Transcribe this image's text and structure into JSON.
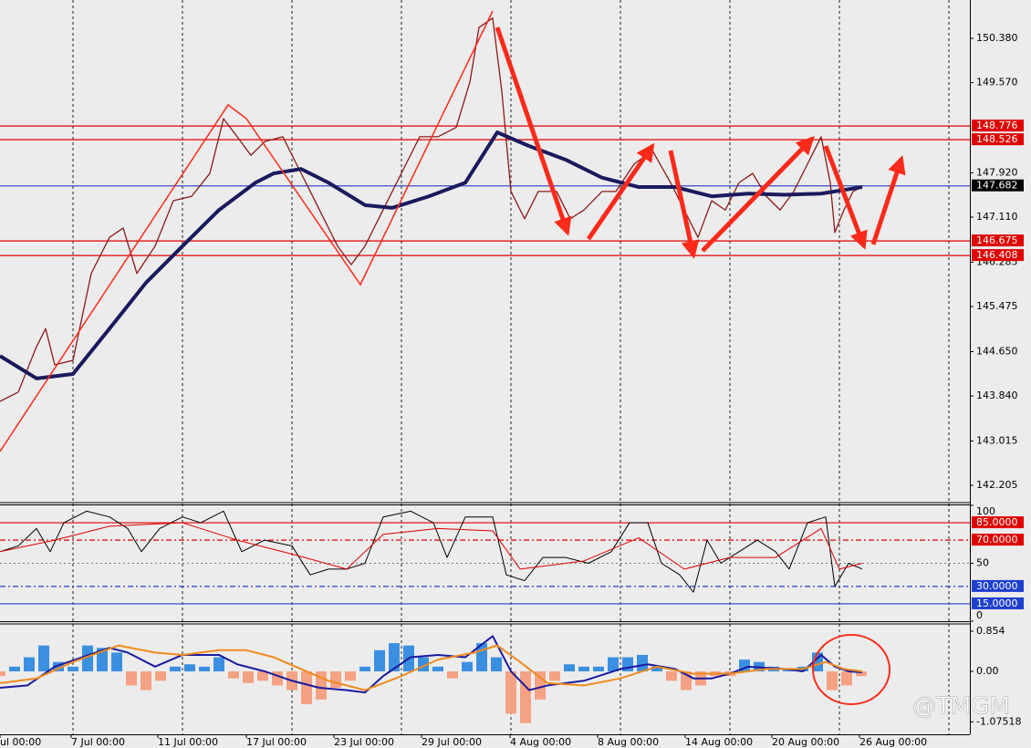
{
  "chart_data": [
    {
      "type": "line",
      "xlim": [
        0,
        265.75
      ],
      "ylim": [
        141.905,
        151.081
      ],
      "yticks": [
        {
          "value": 150.38,
          "label": "150.380"
        },
        {
          "value": 149.57,
          "label": "149.570"
        },
        {
          "value": 147.92,
          "label": "147.920"
        },
        {
          "value": 147.11,
          "label": "147.110"
        },
        146.285,
        145.475,
        {
          "value": 144.65,
          "label": "144.650"
        },
        {
          "value": 143.84,
          "label": "143.840"
        },
        143.015,
        142.205
      ],
      "levels": [
        {
          "value": 148.776,
          "color": "#e00000",
          "label_bg": "#e00000"
        },
        {
          "value": 148.526,
          "color": "#e00000",
          "label_bg": "#e00000"
        },
        {
          "value": 147.682,
          "color": "#3b4fc4",
          "label_bg": "#000000"
        },
        {
          "value": 146.675,
          "color": "#e00000",
          "label_bg": "#e00000"
        },
        {
          "value": 146.408,
          "color": "#e00000",
          "label_bg": "#e00000"
        }
      ],
      "series": [
        {
          "color": "#8b1a1a",
          "width": 1.3,
          "x": [
            0,
            5,
            10,
            12.5,
            15,
            20,
            25,
            30,
            33.75,
            37.5,
            42.5,
            47.5,
            52.5,
            57.5,
            61.25,
            65,
            68.75,
            72.5,
            77.5,
            81.25,
            85,
            88.75,
            92.5,
            96.25,
            100,
            103.75,
            107.5,
            111.25,
            115,
            120,
            125,
            128.75,
            131.25,
            135,
            137.5,
            140,
            143.75,
            147.5,
            152.5,
            156.25,
            160,
            165,
            168.75,
            173.75,
            178.75,
            183.75,
            187.5,
            191.25,
            195,
            198.75,
            202.5,
            206.25,
            210,
            213.75,
            217.5,
            221.25,
            225,
            227.5,
            228.75,
            231.25,
            233.75,
            236.25
          ],
          "values": [
            143.74,
            143.91,
            144.74,
            145.07,
            144.41,
            144.49,
            146.08,
            146.74,
            146.91,
            146.08,
            146.58,
            147.41,
            147.49,
            147.91,
            148.91,
            148.58,
            148.24,
            148.49,
            148.58,
            148.08,
            147.58,
            147.08,
            146.58,
            146.24,
            146.58,
            147.08,
            147.58,
            148.08,
            148.58,
            148.58,
            148.75,
            149.58,
            150.58,
            150.75,
            149.41,
            147.58,
            147.08,
            147.58,
            147.58,
            147.08,
            147.24,
            147.58,
            147.58,
            148.08,
            148.33,
            147.74,
            147.24,
            146.74,
            147.41,
            147.24,
            147.74,
            147.91,
            147.49,
            147.24,
            147.58,
            148.08,
            148.58,
            147.74,
            146.83,
            147.24,
            147.58,
            147.66
          ]
        },
        {
          "color": "#1a1a5e",
          "width": 4,
          "x": [
            0,
            10,
            20,
            30,
            40,
            50,
            60,
            70,
            75,
            82.5,
            90,
            100,
            107.5,
            117.5,
            127.5,
            136.25,
            145,
            155,
            165,
            175,
            185,
            195,
            205,
            215,
            225,
            236.25
          ],
          "values": [
            144.57,
            144.16,
            144.24,
            145.07,
            145.91,
            146.58,
            147.24,
            147.74,
            147.91,
            147.99,
            147.74,
            147.33,
            147.28,
            147.49,
            147.74,
            148.66,
            148.41,
            148.16,
            147.83,
            147.66,
            147.66,
            147.49,
            147.54,
            147.52,
            147.54,
            147.66
          ]
        }
      ]
    },
    {
      "type": "line",
      "xlim": [
        0,
        265.75
      ],
      "ylim": [
        0,
        100
      ],
      "yticks": [
        100,
        50,
        0
      ],
      "levels": [
        {
          "value": 85,
          "label": "85.0000",
          "color": "#e00000",
          "dash": "solid"
        },
        {
          "value": 70,
          "label": "70.0000",
          "color": "#e00000",
          "dash": "dashdot"
        },
        {
          "value": 30,
          "label": "30.0000",
          "color": "#1f3fcf",
          "dash": "dashdot"
        },
        {
          "value": 15,
          "label": "15.0000",
          "color": "#1f3fcf",
          "dash": "solid"
        }
      ],
      "series": [
        {
          "color": "#000000",
          "width": 1,
          "x": [
            0,
            5,
            10,
            13.75,
            17.5,
            23.75,
            30,
            35,
            38.75,
            43.75,
            50,
            55,
            61.25,
            66.25,
            72.5,
            80,
            85,
            90,
            95,
            100,
            105,
            112.5,
            118.75,
            122.5,
            127.5,
            135,
            138.75,
            143.75,
            148.75,
            155,
            161.25,
            167.5,
            172.5,
            177.5,
            181.25,
            186.25,
            190,
            193.75,
            197.5,
            202.5,
            207.5,
            212.5,
            216.25,
            221.25,
            226.25,
            228.75,
            232.5,
            236.25
          ],
          "values": [
            60,
            65,
            80,
            60,
            85,
            95,
            90,
            80,
            60,
            80,
            90,
            85,
            95,
            60,
            70,
            65,
            40,
            45,
            45,
            50,
            90,
            95,
            85,
            55,
            90,
            90,
            40,
            35,
            55,
            55,
            50,
            60,
            85,
            85,
            50,
            40,
            25,
            70,
            50,
            60,
            70,
            60,
            45,
            85,
            90,
            30,
            50,
            45
          ]
        },
        {
          "color": "#e00000",
          "width": 1,
          "x": [
            0,
            15,
            30,
            50,
            65,
            80,
            95,
            105,
            120,
            135,
            142.5,
            160,
            175,
            187.5,
            200,
            212.5,
            225,
            230,
            236.25
          ],
          "values": [
            60,
            70,
            82,
            85,
            70,
            58,
            45,
            75,
            80,
            78,
            45,
            52,
            72,
            45,
            55,
            55,
            80,
            45,
            50
          ]
        }
      ]
    },
    {
      "type": "bar",
      "xlim": [
        0,
        265.75
      ],
      "ylim": [
        -1.34,
        1.009
      ],
      "yticks": [
        0.854,
        {
          "value": 0,
          "label": "0.00"
        },
        -1.07518
      ],
      "xticks": [
        {
          "value": 0,
          "label": "ul 00:00"
        },
        {
          "value": 19.5,
          "label": "7 Jul 00:00"
        },
        {
          "value": 43.25,
          "label": "11 Jul 00:00"
        },
        {
          "value": 67.5,
          "label": "17 Jul 00:00"
        },
        {
          "value": 91.5,
          "label": "23 Jul 00:00"
        },
        {
          "value": 115.5,
          "label": "29 Jul 00:00"
        },
        {
          "value": 139.75,
          "label": "4 Aug 00:00"
        },
        {
          "value": 163.75,
          "label": "8 Aug 00:00"
        },
        {
          "value": 187.75,
          "label": "14 Aug 00:00"
        },
        {
          "value": 211.5,
          "label": "20 Aug 00:00"
        },
        {
          "value": 235.5,
          "label": "26 Aug 00:00"
        }
      ],
      "positive_color": "#3b8fe0",
      "negative_color": "#f4a283",
      "x": [
        0,
        4,
        8,
        12,
        16,
        20,
        24,
        28,
        32,
        36,
        40,
        44,
        48,
        52,
        56,
        60,
        64,
        68,
        72,
        76,
        80,
        84,
        88,
        92,
        96,
        100,
        104,
        108,
        112,
        116,
        120,
        124,
        128,
        132,
        136,
        140,
        144,
        148,
        152,
        156,
        160,
        164,
        168,
        172,
        176,
        180,
        184,
        188,
        192,
        196,
        200,
        204,
        208,
        212,
        216,
        220,
        224,
        228,
        232,
        236
      ],
      "values": [
        -0.1,
        0.1,
        0.3,
        0.55,
        0.2,
        0.1,
        0.55,
        0.5,
        0.4,
        -0.3,
        -0.4,
        -0.2,
        0.1,
        0.15,
        0.1,
        0.3,
        -0.15,
        -0.25,
        -0.2,
        -0.3,
        -0.4,
        -0.7,
        -0.6,
        -0.35,
        -0.2,
        0.1,
        0.45,
        0.6,
        0.55,
        0.3,
        0.1,
        -0.15,
        0.2,
        0.6,
        0.3,
        -0.9,
        -1.1,
        -0.6,
        -0.2,
        0.15,
        0.1,
        0.1,
        0.3,
        0.3,
        0.35,
        0.1,
        -0.2,
        -0.4,
        -0.3,
        -0.1,
        -0.1,
        0.25,
        0.2,
        0.1,
        0.05,
        0.1,
        0.4,
        -0.4,
        -0.3,
        -0.1
      ],
      "series": [
        {
          "color": "#1a1aa0",
          "width": 2,
          "x": [
            0,
            7.5,
            15,
            22.5,
            30,
            35,
            42.5,
            50,
            60,
            65,
            72.5,
            80,
            87.5,
            95,
            100,
            105,
            112.5,
            120,
            127.5,
            135,
            140,
            145,
            150,
            160,
            170,
            177.5,
            185,
            190,
            195,
            200,
            205,
            215,
            220,
            225,
            228.75,
            232.5,
            236.25
          ],
          "values": [
            -0.35,
            -0.3,
            0.1,
            0.3,
            0.5,
            0.4,
            0.1,
            0.35,
            0.35,
            0.15,
            0,
            -0.2,
            -0.35,
            -0.4,
            -0.45,
            -0.1,
            0.3,
            0.35,
            0.3,
            0.75,
            0,
            -0.4,
            -0.3,
            -0.2,
            0.05,
            0.15,
            0.05,
            -0.15,
            -0.15,
            -0.05,
            0.1,
            0.05,
            0,
            0.35,
            0.1,
            0,
            -0.02
          ]
        },
        {
          "color": "#f08a1c",
          "width": 2,
          "x": [
            0,
            10,
            20,
            32.5,
            42.5,
            50,
            60,
            67.5,
            75,
            82.5,
            90,
            100,
            110,
            120,
            130,
            136.25,
            142.5,
            150,
            160,
            170,
            180,
            190,
            200,
            210,
            220,
            226.25,
            231.25,
            236.25
          ],
          "values": [
            -0.25,
            -0.15,
            0.2,
            0.55,
            0.4,
            0.35,
            0.45,
            0.45,
            0.3,
            0.05,
            -0.2,
            -0.4,
            -0.1,
            0.25,
            0.4,
            0.55,
            0.2,
            -0.25,
            -0.3,
            -0.15,
            0.1,
            -0.05,
            -0.05,
            0.05,
            0.05,
            0.2,
            0.05,
            0
          ]
        }
      ]
    }
  ],
  "watermark": "@TMGM"
}
